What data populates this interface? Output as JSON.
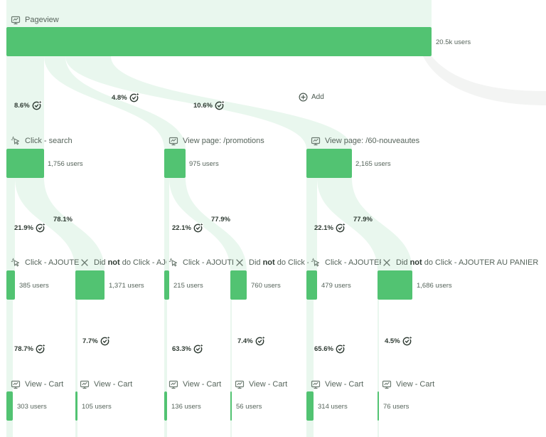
{
  "colors": {
    "bar": "#52c372",
    "flow": "#e9f7ee",
    "flow_gray": "#f3f4f3",
    "text": "#56645b"
  },
  "add_label": "Add",
  "root": {
    "label": "Pageview",
    "users": "20.5k users",
    "icon": "screen-icon"
  },
  "root_conversions": [
    "8.6%",
    "4.8%",
    "10.6%"
  ],
  "branches": [
    {
      "label": "Click - search",
      "users": "1,756 users",
      "icon": "click-icon",
      "pcts": [
        "21.9%",
        "78.1%"
      ],
      "did": {
        "label": "Click - AJOUTER AU PANIER",
        "users": "385 users",
        "icon": "click-icon",
        "pct": "78.7%",
        "cart": {
          "label": "View - Cart",
          "users": "303 users",
          "icon": "screen-icon"
        }
      },
      "not": {
        "pre": "Did ",
        "bold": "not",
        "post": " do Click - AJOUTER AU PANIER",
        "users": "1,371 users",
        "icon": "close-icon",
        "pct": "7.7%",
        "cart": {
          "label": "View - Cart",
          "users": "105 users",
          "icon": "screen-icon"
        }
      }
    },
    {
      "label": "View page: /promotions",
      "users": "975 users",
      "icon": "screen-icon",
      "pcts": [
        "22.1%",
        "77.9%"
      ],
      "did": {
        "label": "Click - AJOUTER AU PANIER",
        "users": "215 users",
        "icon": "click-icon",
        "pct": "63.3%",
        "cart": {
          "label": "View - Cart",
          "users": "136 users",
          "icon": "screen-icon"
        }
      },
      "not": {
        "pre": "Did ",
        "bold": "not",
        "post": " do Click - AJOUTER AU PANIER",
        "users": "760 users",
        "icon": "close-icon",
        "pct": "7.4%",
        "cart": {
          "label": "View - Cart",
          "users": "56 users",
          "icon": "screen-icon"
        }
      }
    },
    {
      "label": "View page: /60-nouveautes",
      "users": "2,165 users",
      "icon": "screen-icon",
      "pcts": [
        "22.1%",
        "77.9%"
      ],
      "did": {
        "label": "Click - AJOUTER AU PANIER",
        "users": "479 users",
        "icon": "click-icon",
        "pct": "65.6%",
        "cart": {
          "label": "View - Cart",
          "users": "314 users",
          "icon": "screen-icon"
        }
      },
      "not": {
        "pre": "Did ",
        "bold": "not",
        "post": " do Click - AJOUTER AU PANIER",
        "users": "1,686 users",
        "icon": "close-icon",
        "pct": "4.5%",
        "cart": {
          "label": "View - Cart",
          "users": "76 users",
          "icon": "screen-icon"
        }
      }
    }
  ]
}
